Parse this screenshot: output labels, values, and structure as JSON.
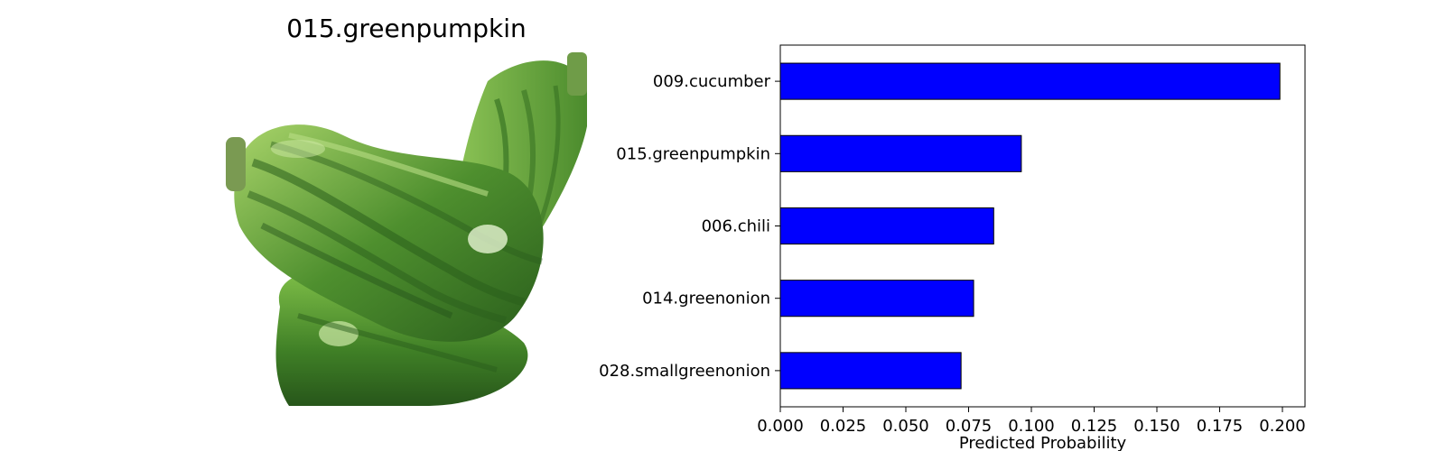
{
  "image_panel": {
    "title": "015.greenpumpkin",
    "subject_icon": "zucchini-illustration",
    "colors": {
      "light_green": "#8bbf4a",
      "mid_green": "#4e8f2e",
      "dark_green": "#2a5e1c",
      "stem": "#7a9a52"
    }
  },
  "chart_data": {
    "type": "bar",
    "orientation": "horizontal",
    "categories": [
      "009.cucumber",
      "015.greenpumpkin",
      "006.chili",
      "014.greenonion",
      "028.smallgreenonion"
    ],
    "values": [
      0.199,
      0.096,
      0.085,
      0.077,
      0.072
    ],
    "title": "",
    "xlabel": "Predicted Probability",
    "ylabel": "",
    "xlim": [
      0.0,
      0.209
    ],
    "xticks": [
      "0.000",
      "0.025",
      "0.050",
      "0.075",
      "0.100",
      "0.125",
      "0.150",
      "0.175",
      "0.200"
    ],
    "bar_color": "#0000ff",
    "edge_color": "#000000",
    "grid": false,
    "legend": "none"
  }
}
